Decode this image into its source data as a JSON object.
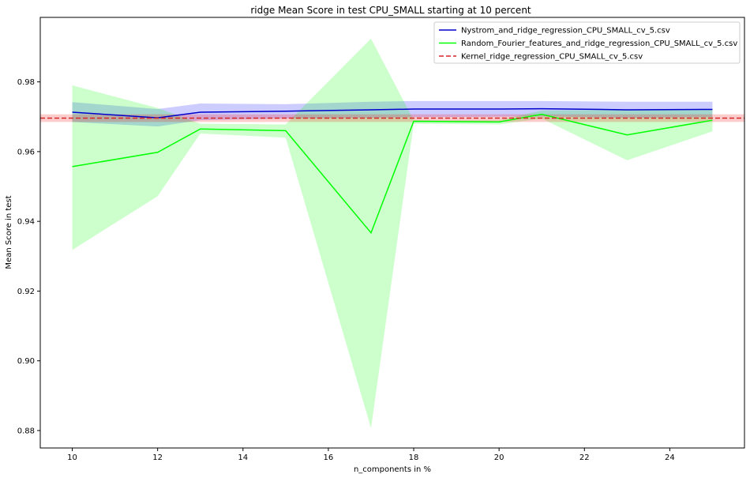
{
  "chart_data": {
    "type": "line",
    "title": "ridge Mean Score in test CPU_SMALL starting at 10 percent",
    "xlabel": "n_components in %",
    "ylabel": "Mean Score in test",
    "xlim": [
      9.25,
      25.75
    ],
    "ylim": [
      0.875,
      0.9985
    ],
    "xticks": [
      10,
      12,
      14,
      16,
      18,
      20,
      22,
      24
    ],
    "yticks": [
      0.88,
      0.9,
      0.92,
      0.94,
      0.96,
      0.98
    ],
    "ytick_labels": [
      "0.88",
      "0.90",
      "0.92",
      "0.94",
      "0.96",
      "0.98"
    ],
    "grid": false,
    "legend_position": "top-right",
    "series": [
      {
        "name": "Nystrom_and_ridge_regression_CPU_SMALL_cv_5.csv",
        "color": "#0000cc",
        "line_style": "solid",
        "band_color": "#0000ff",
        "x": [
          10,
          12,
          13,
          15,
          17,
          18,
          20,
          21,
          23,
          25
        ],
        "values": [
          0.9713,
          0.9697,
          0.9713,
          0.9716,
          0.972,
          0.9722,
          0.9722,
          0.9723,
          0.972,
          0.9721
        ],
        "upper": [
          0.9742,
          0.9722,
          0.9738,
          0.9736,
          0.9743,
          0.9745,
          0.9745,
          0.9745,
          0.9743,
          0.9743
        ],
        "lower": [
          0.9685,
          0.9672,
          0.969,
          0.9695,
          0.9697,
          0.9699,
          0.97,
          0.9701,
          0.9697,
          0.9699
        ]
      },
      {
        "name": "Random_Fourier_features_and_ridge_regression_CPU_SMALL_cv_5.csv",
        "color": "#00ff00",
        "line_style": "solid",
        "band_color": "#00ff00",
        "x": [
          10,
          12,
          13,
          15,
          17,
          18,
          20,
          21,
          23,
          25
        ],
        "values": [
          0.9557,
          0.9598,
          0.9665,
          0.966,
          0.9367,
          0.9687,
          0.9685,
          0.9707,
          0.9648,
          0.969
        ],
        "upper": [
          0.979,
          0.9725,
          0.968,
          0.9678,
          0.9924,
          0.969,
          0.969,
          0.9718,
          0.972,
          0.972
        ],
        "lower": [
          0.9318,
          0.9472,
          0.9652,
          0.964,
          0.8807,
          0.968,
          0.9678,
          0.9695,
          0.9575,
          0.9658
        ]
      },
      {
        "name": "Kernel_ridge_regression_CPU_SMALL_cv_5.csv",
        "color": "#d62728",
        "line_style": "dashed",
        "band_color": "#ff0000",
        "value": 0.9696,
        "band": [
          0.9685,
          0.9707
        ]
      }
    ]
  }
}
